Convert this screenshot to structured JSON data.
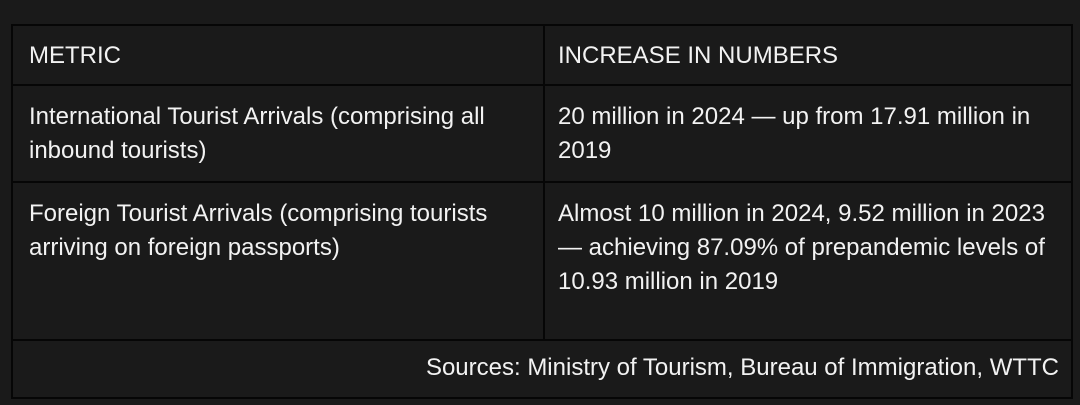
{
  "table": {
    "headers": [
      "METRIC",
      "INCREASE IN NUMBERS"
    ],
    "rows": [
      {
        "metric": "International Tourist Arrivals (comprising all inbound tourists)",
        "value": "20 million in 2024 — up from 17.91 million in 2019"
      },
      {
        "metric": "Foreign Tourist Arrivals (comprising tourists arriving on foreign passports)",
        "value": "Almost 10 million in 2024, 9.52 million in 2023 — achieving 87.09% of prepandemic levels of 10.93 million in 2019"
      }
    ],
    "sources": "Sources: Ministry of Tourism, Bureau of Immigration, WTTC"
  },
  "colors": {
    "background": "#1a1a1a",
    "border": "#060606",
    "text": "#f2f2f2"
  }
}
